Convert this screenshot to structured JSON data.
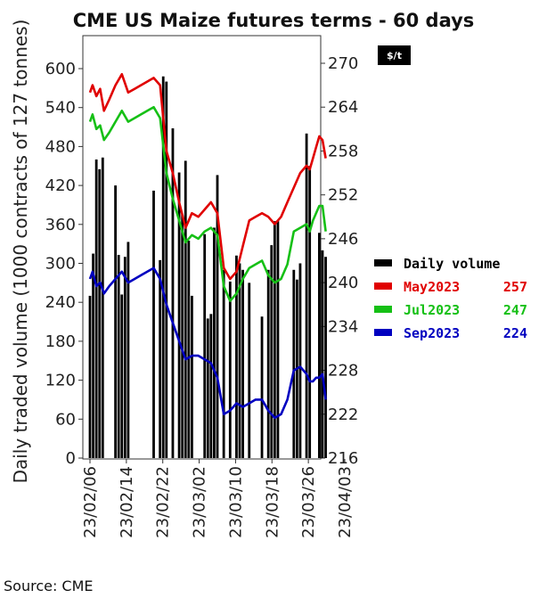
{
  "chart_data": {
    "type": "bar+line",
    "title": "CME US Maize futures terms - 60 days",
    "ylabel_left": "Daily traded volume (1000 contracts of 127 tonnes)",
    "unit_right": "$/t",
    "left_ticks": [
      "0",
      "60",
      "120",
      "180",
      "240",
      "300",
      "360",
      "420",
      "480",
      "540",
      "600"
    ],
    "right_ticks": [
      "216",
      "222",
      "228",
      "234",
      "240",
      "246",
      "252",
      "258",
      "264",
      "270"
    ],
    "x_ticks": [
      "23/02/06",
      "23/02/14",
      "23/02/22",
      "23/03/02",
      "23/03/10",
      "23/03/18",
      "23/03/26",
      "23/04/03"
    ],
    "ylim_left": [
      0,
      600
    ],
    "ylim_right": [
      216,
      270
    ],
    "days": 60,
    "bar_series": {
      "name": "Daily volume",
      "color": "#000000",
      "points": [
        [
          0,
          250
        ],
        [
          0.5,
          315
        ],
        [
          1,
          460
        ],
        [
          1.5,
          445
        ],
        [
          2,
          463
        ],
        [
          4,
          420
        ],
        [
          4.5,
          313
        ],
        [
          5,
          252
        ],
        [
          5.5,
          310
        ],
        [
          6,
          333
        ],
        [
          10,
          412
        ],
        [
          11,
          305
        ],
        [
          11.5,
          588
        ],
        [
          12,
          580
        ],
        [
          13,
          508
        ],
        [
          14,
          440
        ],
        [
          14.5,
          375
        ],
        [
          15,
          458
        ],
        [
          15.5,
          335
        ],
        [
          16,
          250
        ],
        [
          18,
          345
        ],
        [
          18.5,
          215
        ],
        [
          19,
          222
        ],
        [
          19.5,
          355
        ],
        [
          20,
          436
        ],
        [
          21,
          290
        ],
        [
          22,
          272
        ],
        [
          23,
          312
        ],
        [
          23.5,
          300
        ],
        [
          24,
          290
        ],
        [
          25,
          270
        ],
        [
          27,
          218
        ],
        [
          28,
          290
        ],
        [
          28.5,
          328
        ],
        [
          29,
          365
        ],
        [
          29.5,
          365
        ],
        [
          32,
          290
        ],
        [
          32.5,
          275
        ],
        [
          33,
          300
        ],
        [
          34,
          500
        ],
        [
          34.5,
          450
        ],
        [
          36,
          347
        ],
        [
          36.5,
          320
        ],
        [
          37,
          310
        ]
      ]
    },
    "series": [
      {
        "name": "May2023",
        "last": "257",
        "color": "#e00000",
        "points": [
          [
            0,
            266
          ],
          [
            0.4,
            267
          ],
          [
            1,
            265.5
          ],
          [
            1.6,
            266.5
          ],
          [
            2.2,
            263.5
          ],
          [
            3,
            265
          ],
          [
            4,
            267
          ],
          [
            5,
            268.5
          ],
          [
            6,
            266
          ],
          [
            7,
            266.5
          ],
          [
            8,
            267
          ],
          [
            9,
            267.5
          ],
          [
            10,
            268
          ],
          [
            11,
            267
          ],
          [
            12,
            258
          ],
          [
            13,
            255
          ],
          [
            14,
            251
          ],
          [
            15,
            247.5
          ],
          [
            16,
            249.5
          ],
          [
            17,
            249
          ],
          [
            18,
            250
          ],
          [
            19,
            251
          ],
          [
            20,
            249.5
          ],
          [
            21,
            242
          ],
          [
            22,
            240.5
          ],
          [
            23,
            241.5
          ],
          [
            24,
            245
          ],
          [
            25,
            248.5
          ],
          [
            26,
            249
          ],
          [
            27,
            249.5
          ],
          [
            28,
            249
          ],
          [
            29,
            248
          ],
          [
            30,
            249
          ],
          [
            31,
            251
          ],
          [
            32,
            253
          ],
          [
            33,
            255
          ],
          [
            34,
            256
          ],
          [
            34.5,
            255.5
          ],
          [
            35,
            257
          ],
          [
            35.5,
            258.5
          ],
          [
            36,
            260
          ],
          [
            36.5,
            259.5
          ],
          [
            37,
            257
          ]
        ]
      },
      {
        "name": "Jul2023",
        "last": "247",
        "color": "#16c016",
        "points": [
          [
            0,
            262
          ],
          [
            0.4,
            263
          ],
          [
            1,
            261
          ],
          [
            1.6,
            261.5
          ],
          [
            2.2,
            259.5
          ],
          [
            3,
            260.5
          ],
          [
            4,
            262
          ],
          [
            5,
            263.5
          ],
          [
            6,
            262
          ],
          [
            7,
            262.5
          ],
          [
            8,
            263
          ],
          [
            9,
            263.5
          ],
          [
            10,
            264
          ],
          [
            11,
            262.5
          ],
          [
            12,
            255
          ],
          [
            13,
            251.5
          ],
          [
            14,
            248.5
          ],
          [
            15,
            245.5
          ],
          [
            16,
            246.5
          ],
          [
            17,
            246
          ],
          [
            18,
            247
          ],
          [
            19,
            247.5
          ],
          [
            20,
            246.5
          ],
          [
            21,
            239.5
          ],
          [
            22,
            237.5
          ],
          [
            23,
            238.5
          ],
          [
            24,
            240.5
          ],
          [
            25,
            242
          ],
          [
            26,
            242.5
          ],
          [
            27,
            243
          ],
          [
            28,
            241
          ],
          [
            29,
            240
          ],
          [
            30,
            240.5
          ],
          [
            31,
            242.5
          ],
          [
            32,
            247
          ],
          [
            33,
            247.5
          ],
          [
            34,
            248
          ],
          [
            34.5,
            247
          ],
          [
            35,
            248.5
          ],
          [
            35.5,
            249.5
          ],
          [
            36,
            250.5
          ],
          [
            36.5,
            250.5
          ],
          [
            37,
            247
          ]
        ]
      },
      {
        "name": "Sep2023",
        "last": "224",
        "color": "#0000c0",
        "points": [
          [
            0,
            240.5
          ],
          [
            0.4,
            241.5
          ],
          [
            1,
            239.5
          ],
          [
            1.6,
            240
          ],
          [
            2.2,
            238.5
          ],
          [
            3,
            239.5
          ],
          [
            4,
            240.5
          ],
          [
            5,
            241.5
          ],
          [
            6,
            240
          ],
          [
            7,
            240.5
          ],
          [
            8,
            241
          ],
          [
            9,
            241.5
          ],
          [
            10,
            242
          ],
          [
            11,
            240.5
          ],
          [
            12,
            237
          ],
          [
            13,
            234.5
          ],
          [
            14,
            232
          ],
          [
            15,
            229.5
          ],
          [
            16,
            230
          ],
          [
            17,
            230
          ],
          [
            18,
            229.5
          ],
          [
            19,
            229
          ],
          [
            20,
            227
          ],
          [
            21,
            222
          ],
          [
            22,
            222.5
          ],
          [
            23,
            223.5
          ],
          [
            24,
            223
          ],
          [
            25,
            223.5
          ],
          [
            26,
            224
          ],
          [
            27,
            224
          ],
          [
            28,
            222.5
          ],
          [
            29,
            221.5
          ],
          [
            30,
            222
          ],
          [
            31,
            224
          ],
          [
            32,
            228
          ],
          [
            33,
            228.5
          ],
          [
            34,
            227.5
          ],
          [
            34.5,
            226.5
          ],
          [
            35,
            226.5
          ],
          [
            35.5,
            227
          ],
          [
            36,
            227
          ],
          [
            36.5,
            227.5
          ],
          [
            37,
            224
          ]
        ]
      }
    ],
    "legend_position": "right",
    "grid": false,
    "source": "Source: CME"
  }
}
